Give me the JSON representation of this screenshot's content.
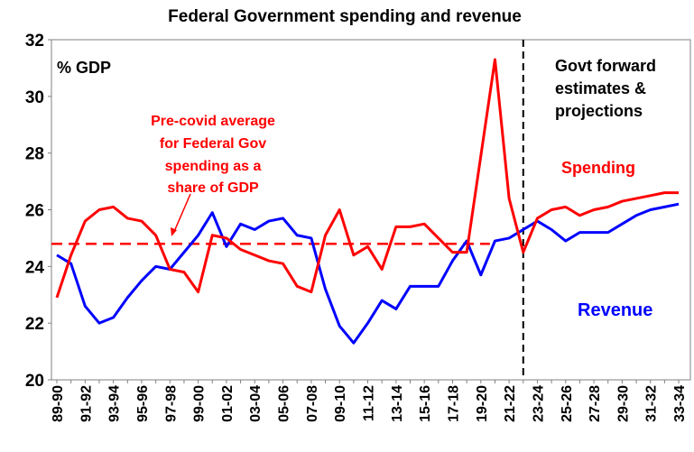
{
  "chart_data": {
    "type": "line",
    "title": "Federal Government spending and revenue",
    "ylabel": "% GDP",
    "ylim": [
      20,
      32
    ],
    "yticks": [
      20,
      22,
      24,
      26,
      28,
      30,
      32
    ],
    "categories": [
      "89-90",
      "90-91",
      "91-92",
      "92-93",
      "93-94",
      "94-95",
      "95-96",
      "96-97",
      "97-98",
      "98-99",
      "99-00",
      "00-01",
      "01-02",
      "02-03",
      "03-04",
      "04-05",
      "05-06",
      "06-07",
      "07-08",
      "08-09",
      "09-10",
      "10-11",
      "11-12",
      "12-13",
      "13-14",
      "14-15",
      "15-16",
      "16-17",
      "17-18",
      "18-19",
      "19-20",
      "20-21",
      "21-22",
      "22-23",
      "23-24",
      "24-25",
      "25-26",
      "26-27",
      "27-28",
      "28-29",
      "29-30",
      "30-31",
      "31-32",
      "32-33",
      "33-34"
    ],
    "series": [
      {
        "name": "Spending",
        "color": "#ff0000",
        "values": [
          22.9,
          24.4,
          25.6,
          26.0,
          26.1,
          25.7,
          25.6,
          25.1,
          23.9,
          23.8,
          23.1,
          25.1,
          25.0,
          24.6,
          24.4,
          24.2,
          24.1,
          23.3,
          23.1,
          25.1,
          26.0,
          24.4,
          24.7,
          23.9,
          25.4,
          25.4,
          25.5,
          25.0,
          24.5,
          24.5,
          27.9,
          31.3,
          26.4,
          24.5,
          25.7,
          26.0,
          26.1,
          25.8,
          26.0,
          26.1,
          26.3,
          26.4,
          26.5,
          26.6,
          26.6
        ]
      },
      {
        "name": "Revenue",
        "color": "#0000ff",
        "values": [
          24.4,
          24.1,
          22.6,
          22.0,
          22.2,
          22.9,
          23.5,
          24.0,
          23.9,
          24.5,
          25.1,
          25.9,
          24.7,
          25.5,
          25.3,
          25.6,
          25.7,
          25.1,
          25.0,
          23.2,
          21.9,
          21.3,
          22.0,
          22.8,
          22.5,
          23.3,
          23.3,
          23.3,
          24.2,
          24.9,
          23.7,
          24.9,
          25.0,
          25.3,
          25.6,
          25.3,
          24.9,
          25.2,
          25.2,
          25.2,
          25.5,
          25.8,
          26.0,
          26.1,
          26.2
        ]
      }
    ],
    "precovid_average": {
      "value": 24.8,
      "from": "89-90",
      "to": "19-20",
      "color": "#ff0000"
    },
    "forecast_start": "22-23",
    "annotations": {
      "average_lines": [
        "Pre-covid average",
        "for Federal Gov",
        "spending as a",
        "share of GDP"
      ],
      "forecast_lines": [
        "Govt forward",
        "estimates &",
        "projections"
      ]
    }
  }
}
